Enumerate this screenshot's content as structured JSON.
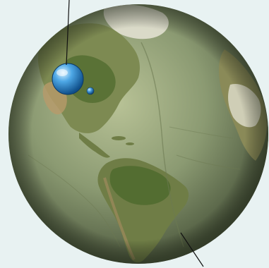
{
  "scene": {
    "background_color": "#e8f2f2",
    "globe": {
      "ocean_color": "#8b9a72",
      "ocean_highlight": "#b8c296",
      "ocean_shadow": "#4e5a3f",
      "land_color": "#7d8a52",
      "forest_color": "#4f6a2e",
      "desert_color": "#b89a6a",
      "ice_color": "#e6e4d6"
    },
    "sphere_large": {
      "color": "#4ea8e6",
      "highlight": "#d8f2ff"
    },
    "sphere_small": {
      "color": "#3a8fd0"
    },
    "leader_line_color": "#111111"
  }
}
